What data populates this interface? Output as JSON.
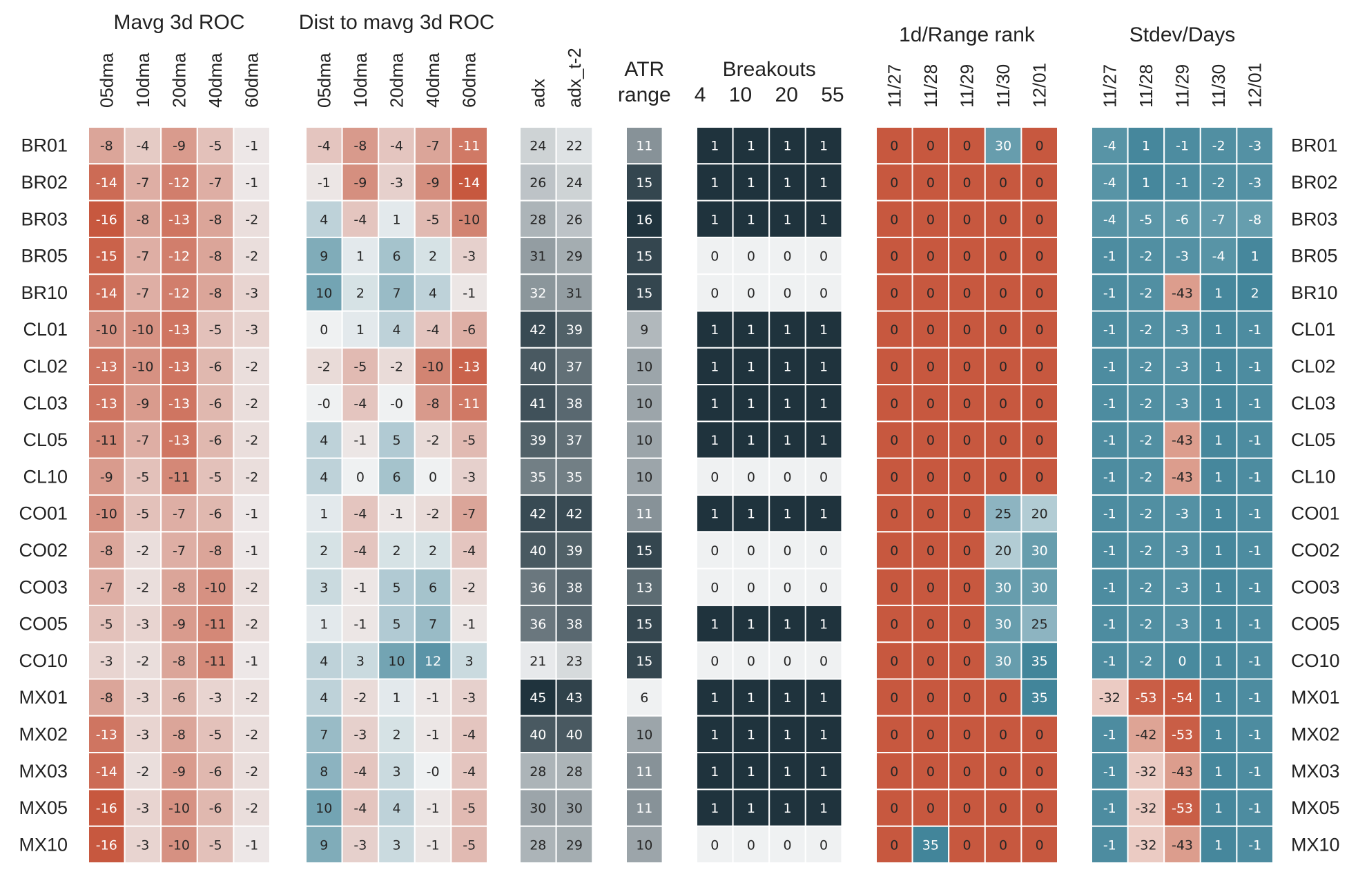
{
  "chart_data": {
    "type": "heatmap",
    "rows": [
      "BR01",
      "BR02",
      "BR03",
      "BR05",
      "BR10",
      "CL01",
      "CL02",
      "CL03",
      "CL05",
      "CL10",
      "CO01",
      "CO02",
      "CO03",
      "CO05",
      "CO10",
      "MX01",
      "MX02",
      "MX03",
      "MX05",
      "MX10"
    ],
    "colors": {
      "negative": "#c7583f",
      "neutral": "#eff1f2",
      "positive": "#42859a",
      "gray_light": "#eff1f2",
      "gray_dark": "#1f333d",
      "grid": "#ffffff"
    },
    "groups": [
      {
        "title": "Mavg 3d ROC",
        "subtitle": "",
        "columns": [
          "05dma",
          "10dma",
          "20dma",
          "40dma",
          "60dma"
        ],
        "cmap": "diverging",
        "range": [
          -16,
          16
        ],
        "values": [
          [
            "-8",
            "-4",
            "-9",
            "-5",
            "-1"
          ],
          [
            "-14",
            "-7",
            "-12",
            "-7",
            "-1"
          ],
          [
            "-16",
            "-8",
            "-13",
            "-8",
            "-2"
          ],
          [
            "-15",
            "-7",
            "-12",
            "-8",
            "-2"
          ],
          [
            "-14",
            "-7",
            "-12",
            "-8",
            "-3"
          ],
          [
            "-10",
            "-10",
            "-13",
            "-5",
            "-3"
          ],
          [
            "-13",
            "-10",
            "-13",
            "-6",
            "-2"
          ],
          [
            "-13",
            "-9",
            "-13",
            "-6",
            "-2"
          ],
          [
            "-11",
            "-7",
            "-13",
            "-6",
            "-2"
          ],
          [
            "-9",
            "-5",
            "-11",
            "-5",
            "-2"
          ],
          [
            "-10",
            "-5",
            "-7",
            "-6",
            "-1"
          ],
          [
            "-8",
            "-2",
            "-7",
            "-8",
            "-1"
          ],
          [
            "-7",
            "-2",
            "-8",
            "-10",
            "-2"
          ],
          [
            "-5",
            "-3",
            "-9",
            "-11",
            "-2"
          ],
          [
            "-3",
            "-2",
            "-8",
            "-11",
            "-1"
          ],
          [
            "-8",
            "-3",
            "-6",
            "-3",
            "-2"
          ],
          [
            "-13",
            "-3",
            "-8",
            "-5",
            "-2"
          ],
          [
            "-14",
            "-2",
            "-9",
            "-6",
            "-2"
          ],
          [
            "-16",
            "-3",
            "-10",
            "-6",
            "-2"
          ],
          [
            "-16",
            "-3",
            "-10",
            "-5",
            "-1"
          ]
        ]
      },
      {
        "title": "Dist to mavg 3d ROC",
        "subtitle": "",
        "columns": [
          "05dma",
          "10dma",
          "20dma",
          "40dma",
          "60dma"
        ],
        "cmap": "diverging",
        "range": [
          -14,
          14
        ],
        "values": [
          [
            "-4",
            "-8",
            "-4",
            "-7",
            "-11"
          ],
          [
            "-1",
            "-9",
            "-3",
            "-9",
            "-14"
          ],
          [
            "4",
            "-4",
            "1",
            "-5",
            "-10"
          ],
          [
            "9",
            "1",
            "6",
            "2",
            "-3"
          ],
          [
            "10",
            "2",
            "7",
            "4",
            "-1"
          ],
          [
            "0",
            "1",
            "4",
            "-4",
            "-6"
          ],
          [
            "-2",
            "-5",
            "-2",
            "-10",
            "-13"
          ],
          [
            "-0",
            "-4",
            "-0",
            "-8",
            "-11"
          ],
          [
            "4",
            "-1",
            "5",
            "-2",
            "-5"
          ],
          [
            "4",
            "0",
            "6",
            "0",
            "-3"
          ],
          [
            "1",
            "-4",
            "-1",
            "-2",
            "-7"
          ],
          [
            "2",
            "-4",
            "2",
            "2",
            "-4"
          ],
          [
            "3",
            "-1",
            "5",
            "6",
            "-2"
          ],
          [
            "1",
            "-1",
            "5",
            "7",
            "-1"
          ],
          [
            "4",
            "3",
            "10",
            "12",
            "3"
          ],
          [
            "4",
            "-2",
            "1",
            "-1",
            "-3"
          ],
          [
            "7",
            "-3",
            "2",
            "-1",
            "-4"
          ],
          [
            "8",
            "-4",
            "3",
            "-0",
            "-4"
          ],
          [
            "10",
            "-4",
            "4",
            "-1",
            "-5"
          ],
          [
            "9",
            "-3",
            "3",
            "-1",
            "-5"
          ]
        ]
      },
      {
        "title": "",
        "subtitle": "",
        "columns": [
          "adx",
          "adx_t-2"
        ],
        "cmap": "gray",
        "range": [
          20,
          45
        ],
        "values": [
          [
            "24",
            "22"
          ],
          [
            "26",
            "24"
          ],
          [
            "28",
            "26"
          ],
          [
            "31",
            "29"
          ],
          [
            "32",
            "31"
          ],
          [
            "42",
            "39"
          ],
          [
            "40",
            "37"
          ],
          [
            "41",
            "38"
          ],
          [
            "39",
            "37"
          ],
          [
            "35",
            "35"
          ],
          [
            "42",
            "42"
          ],
          [
            "40",
            "39"
          ],
          [
            "36",
            "38"
          ],
          [
            "36",
            "38"
          ],
          [
            "21",
            "23"
          ],
          [
            "45",
            "43"
          ],
          [
            "40",
            "40"
          ],
          [
            "28",
            "28"
          ],
          [
            "30",
            "30"
          ],
          [
            "28",
            "29"
          ]
        ]
      },
      {
        "title": "ATR",
        "subtitle": "range",
        "columns": [],
        "cmap": "gray",
        "range": [
          6,
          16
        ],
        "values": [
          [
            "11"
          ],
          [
            "15"
          ],
          [
            "16"
          ],
          [
            "15"
          ],
          [
            "15"
          ],
          [
            "9"
          ],
          [
            "10"
          ],
          [
            "10"
          ],
          [
            "10"
          ],
          [
            "10"
          ],
          [
            "11"
          ],
          [
            "15"
          ],
          [
            "13"
          ],
          [
            "15"
          ],
          [
            "15"
          ],
          [
            "6"
          ],
          [
            "10"
          ],
          [
            "11"
          ],
          [
            "11"
          ],
          [
            "10"
          ]
        ]
      },
      {
        "title": "Breakouts",
        "subtitle": "4    10    20    55",
        "columns": [],
        "cmap": "gray",
        "range": [
          0,
          1
        ],
        "values": [
          [
            "1",
            "1",
            "1",
            "1"
          ],
          [
            "1",
            "1",
            "1",
            "1"
          ],
          [
            "1",
            "1",
            "1",
            "1"
          ],
          [
            "0",
            "0",
            "0",
            "0"
          ],
          [
            "0",
            "0",
            "0",
            "0"
          ],
          [
            "1",
            "1",
            "1",
            "1"
          ],
          [
            "1",
            "1",
            "1",
            "1"
          ],
          [
            "1",
            "1",
            "1",
            "1"
          ],
          [
            "1",
            "1",
            "1",
            "1"
          ],
          [
            "0",
            "0",
            "0",
            "0"
          ],
          [
            "1",
            "1",
            "1",
            "1"
          ],
          [
            "0",
            "0",
            "0",
            "0"
          ],
          [
            "0",
            "0",
            "0",
            "0"
          ],
          [
            "1",
            "1",
            "1",
            "1"
          ],
          [
            "0",
            "0",
            "0",
            "0"
          ],
          [
            "1",
            "1",
            "1",
            "1"
          ],
          [
            "1",
            "1",
            "1",
            "1"
          ],
          [
            "1",
            "1",
            "1",
            "1"
          ],
          [
            "1",
            "1",
            "1",
            "1"
          ],
          [
            "0",
            "0",
            "0",
            "0"
          ]
        ]
      },
      {
        "title": "1d/Range rank",
        "subtitle": "",
        "columns": [
          "11/27",
          "11/28",
          "11/29",
          "11/30",
          "12/01"
        ],
        "cmap": "rank",
        "range": [
          0,
          40
        ],
        "values": [
          [
            "0",
            "0",
            "0",
            "30",
            "0"
          ],
          [
            "0",
            "0",
            "0",
            "0",
            "0"
          ],
          [
            "0",
            "0",
            "0",
            "0",
            "0"
          ],
          [
            "0",
            "0",
            "0",
            "0",
            "0"
          ],
          [
            "0",
            "0",
            "0",
            "0",
            "0"
          ],
          [
            "0",
            "0",
            "0",
            "0",
            "0"
          ],
          [
            "0",
            "0",
            "0",
            "0",
            "0"
          ],
          [
            "0",
            "0",
            "0",
            "0",
            "0"
          ],
          [
            "0",
            "0",
            "0",
            "0",
            "0"
          ],
          [
            "0",
            "0",
            "0",
            "0",
            "0"
          ],
          [
            "0",
            "0",
            "0",
            "25",
            "20"
          ],
          [
            "0",
            "0",
            "0",
            "20",
            "30"
          ],
          [
            "0",
            "0",
            "0",
            "30",
            "30"
          ],
          [
            "0",
            "0",
            "0",
            "30",
            "25"
          ],
          [
            "0",
            "0",
            "0",
            "30",
            "35"
          ],
          [
            "0",
            "0",
            "0",
            "0",
            "35"
          ],
          [
            "0",
            "0",
            "0",
            "0",
            "0"
          ],
          [
            "0",
            "0",
            "0",
            "0",
            "0"
          ],
          [
            "0",
            "0",
            "0",
            "0",
            "0"
          ],
          [
            "0",
            "35",
            "0",
            "0",
            "0"
          ]
        ]
      },
      {
        "title": "Stdev/Days",
        "subtitle": "",
        "columns": [
          "11/27",
          "11/28",
          "11/29",
          "11/30",
          "12/01"
        ],
        "cmap": "stdev",
        "range": [
          -54,
          0
        ],
        "values": [
          [
            "-4",
            "1",
            "-1",
            "-2",
            "-3"
          ],
          [
            "-4",
            "1",
            "-1",
            "-2",
            "-3"
          ],
          [
            "-4",
            "-5",
            "-6",
            "-7",
            "-8"
          ],
          [
            "-1",
            "-2",
            "-3",
            "-4",
            "1"
          ],
          [
            "-1",
            "-2",
            "-43",
            "1",
            "2"
          ],
          [
            "-1",
            "-2",
            "-3",
            "1",
            "-1"
          ],
          [
            "-1",
            "-2",
            "-3",
            "1",
            "-1"
          ],
          [
            "-1",
            "-2",
            "-3",
            "1",
            "-1"
          ],
          [
            "-1",
            "-2",
            "-43",
            "1",
            "-1"
          ],
          [
            "-1",
            "-2",
            "-43",
            "1",
            "-1"
          ],
          [
            "-1",
            "-2",
            "-3",
            "1",
            "-1"
          ],
          [
            "-1",
            "-2",
            "-3",
            "1",
            "-1"
          ],
          [
            "-1",
            "-2",
            "-3",
            "1",
            "-1"
          ],
          [
            "-1",
            "-2",
            "-3",
            "1",
            "-1"
          ],
          [
            "-1",
            "-2",
            "0",
            "1",
            "-1"
          ],
          [
            "-32",
            "-53",
            "-54",
            "1",
            "-1"
          ],
          [
            "-1",
            "-42",
            "-53",
            "1",
            "-1"
          ],
          [
            "-1",
            "-32",
            "-43",
            "1",
            "-1"
          ],
          [
            "-1",
            "-32",
            "-53",
            "1",
            "-1"
          ],
          [
            "-1",
            "-32",
            "-43",
            "1",
            "-1"
          ]
        ]
      }
    ]
  }
}
